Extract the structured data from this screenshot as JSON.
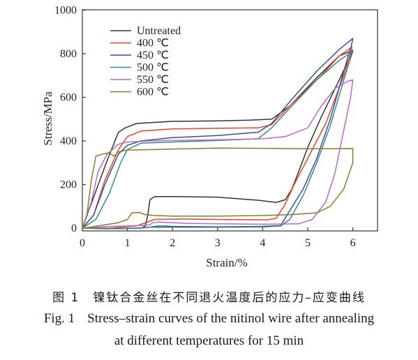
{
  "chart_data": {
    "type": "line",
    "xlabel": "Strain/%",
    "ylabel": "Stress/MPa",
    "xlim": [
      0,
      6.9
    ],
    "ylim": [
      -10,
      1000
    ],
    "xticks": [
      0,
      1,
      2,
      3,
      4,
      5,
      6
    ],
    "yticks": [
      0,
      200,
      400,
      600,
      800,
      1000
    ],
    "grid": false,
    "legend_position": "top-left",
    "series": [
      {
        "name": "Untreated",
        "color": "#333333",
        "points": [
          [
            0,
            0
          ],
          [
            0.3,
            170
          ],
          [
            0.55,
            310
          ],
          [
            0.8,
            440
          ],
          [
            0.95,
            460
          ],
          [
            1.2,
            480
          ],
          [
            2,
            490
          ],
          [
            3,
            492
          ],
          [
            3.7,
            495
          ],
          [
            4.2,
            500
          ],
          [
            4.6,
            560
          ],
          [
            5.2,
            690
          ],
          [
            5.7,
            790
          ],
          [
            6,
            815
          ],
          [
            5.95,
            790
          ],
          [
            5.7,
            680
          ],
          [
            5.3,
            510
          ],
          [
            5,
            370
          ],
          [
            4.8,
            260
          ],
          [
            4.65,
            180
          ],
          [
            4.5,
            130
          ],
          [
            4.3,
            118
          ],
          [
            3.9,
            128
          ],
          [
            3,
            142
          ],
          [
            2,
            145
          ],
          [
            1.6,
            145
          ],
          [
            1.5,
            130
          ],
          [
            1.45,
            60
          ],
          [
            1.4,
            10
          ],
          [
            1.3,
            0
          ],
          [
            0.5,
            -3
          ],
          [
            0,
            0
          ]
        ]
      },
      {
        "name": "400 ℃",
        "color": "#e5452b",
        "points": [
          [
            0,
            0
          ],
          [
            0.25,
            60
          ],
          [
            0.5,
            220
          ],
          [
            0.8,
            360
          ],
          [
            1,
            420
          ],
          [
            1.3,
            445
          ],
          [
            2,
            455
          ],
          [
            3,
            458
          ],
          [
            3.9,
            460
          ],
          [
            4.2,
            475
          ],
          [
            4.6,
            560
          ],
          [
            5.3,
            700
          ],
          [
            5.7,
            790
          ],
          [
            5.98,
            830
          ],
          [
            5.95,
            800
          ],
          [
            5.8,
            700
          ],
          [
            5.4,
            480
          ],
          [
            5,
            320
          ],
          [
            4.7,
            200
          ],
          [
            4.5,
            110
          ],
          [
            4.3,
            45
          ],
          [
            4.1,
            38
          ],
          [
            3,
            40
          ],
          [
            2.2,
            42
          ],
          [
            1.6,
            40
          ],
          [
            1.2,
            10
          ],
          [
            0.6,
            0
          ],
          [
            0,
            0
          ]
        ]
      },
      {
        "name": "450 ℃",
        "color": "#3a4d9c",
        "points": [
          [
            0,
            0
          ],
          [
            0.25,
            60
          ],
          [
            0.5,
            200
          ],
          [
            0.8,
            340
          ],
          [
            1,
            380
          ],
          [
            1.3,
            400
          ],
          [
            2,
            415
          ],
          [
            3,
            425
          ],
          [
            3.9,
            440
          ],
          [
            4.2,
            480
          ],
          [
            4.6,
            580
          ],
          [
            5.2,
            720
          ],
          [
            5.7,
            820
          ],
          [
            6,
            870
          ],
          [
            5.97,
            840
          ],
          [
            5.8,
            720
          ],
          [
            5.5,
            500
          ],
          [
            5.2,
            320
          ],
          [
            4.9,
            180
          ],
          [
            4.6,
            80
          ],
          [
            4.4,
            12
          ],
          [
            4,
            8
          ],
          [
            3,
            6
          ],
          [
            2,
            8
          ],
          [
            1.7,
            10
          ],
          [
            1.4,
            2
          ],
          [
            1,
            -2
          ],
          [
            0,
            0
          ]
        ]
      },
      {
        "name": "500 ℃",
        "color": "#3a8a80",
        "points": [
          [
            0,
            0
          ],
          [
            0.3,
            40
          ],
          [
            0.6,
            160
          ],
          [
            0.85,
            300
          ],
          [
            1,
            360
          ],
          [
            1.3,
            390
          ],
          [
            2,
            395
          ],
          [
            3,
            402
          ],
          [
            3.9,
            410
          ],
          [
            4.2,
            460
          ],
          [
            4.6,
            550
          ],
          [
            5.2,
            680
          ],
          [
            5.7,
            770
          ],
          [
            6,
            810
          ],
          [
            5.95,
            780
          ],
          [
            5.8,
            680
          ],
          [
            5.5,
            470
          ],
          [
            5.2,
            300
          ],
          [
            4.9,
            150
          ],
          [
            4.6,
            40
          ],
          [
            4.4,
            10
          ],
          [
            4,
            5
          ],
          [
            3,
            4
          ],
          [
            2,
            4
          ],
          [
            1.5,
            4
          ],
          [
            1.2,
            0
          ],
          [
            0.6,
            -2
          ],
          [
            0,
            0
          ]
        ]
      },
      {
        "name": "550 ℃",
        "color": "#b868c8",
        "points": [
          [
            0,
            0
          ],
          [
            0.2,
            120
          ],
          [
            0.35,
            260
          ],
          [
            0.55,
            340
          ],
          [
            0.8,
            385
          ],
          [
            1,
            395
          ],
          [
            1.5,
            400
          ],
          [
            2,
            402
          ],
          [
            3,
            405
          ],
          [
            4,
            410
          ],
          [
            4.5,
            420
          ],
          [
            5,
            460
          ],
          [
            5.3,
            560
          ],
          [
            5.6,
            640
          ],
          [
            5.9,
            675
          ],
          [
            6,
            680
          ],
          [
            5.95,
            600
          ],
          [
            5.8,
            450
          ],
          [
            5.6,
            250
          ],
          [
            5.4,
            120
          ],
          [
            5.1,
            40
          ],
          [
            4.8,
            20
          ],
          [
            4,
            18
          ],
          [
            3,
            20
          ],
          [
            2.3,
            22
          ],
          [
            1.7,
            28
          ],
          [
            1.55,
            25
          ],
          [
            1.5,
            15
          ],
          [
            1.3,
            12
          ],
          [
            1,
            10
          ],
          [
            0.6,
            8
          ],
          [
            0,
            0
          ]
        ]
      },
      {
        "name": "600 ℃",
        "color": "#8a7a2a",
        "points": [
          [
            0,
            0
          ],
          [
            0.1,
            60
          ],
          [
            0.2,
            220
          ],
          [
            0.3,
            330
          ],
          [
            0.45,
            340
          ],
          [
            0.6,
            345
          ],
          [
            0.7,
            330
          ],
          [
            0.8,
            350
          ],
          [
            1,
            358
          ],
          [
            1.5,
            360
          ],
          [
            2,
            363
          ],
          [
            3,
            367
          ],
          [
            4,
            366
          ],
          [
            5,
            364
          ],
          [
            6,
            365
          ],
          [
            6,
            300
          ],
          [
            5.8,
            180
          ],
          [
            5.5,
            100
          ],
          [
            5.2,
            70
          ],
          [
            4.6,
            62
          ],
          [
            4,
            58
          ],
          [
            3,
            55
          ],
          [
            2,
            55
          ],
          [
            1.6,
            58
          ],
          [
            1.4,
            62
          ],
          [
            1.25,
            72
          ],
          [
            1.1,
            70
          ],
          [
            1,
            40
          ],
          [
            0.8,
            25
          ],
          [
            0.5,
            15
          ],
          [
            0.2,
            5
          ],
          [
            0,
            0
          ]
        ]
      }
    ]
  },
  "caption": {
    "cn": "图 1　镍钛合金丝在不同退火温度后的应力–应变曲线",
    "en_label": "Fig. 1",
    "en_line1": "Stress–strain curves of the nitinol wire after annealing",
    "en_line2": "at different temperatures for 15 min"
  }
}
